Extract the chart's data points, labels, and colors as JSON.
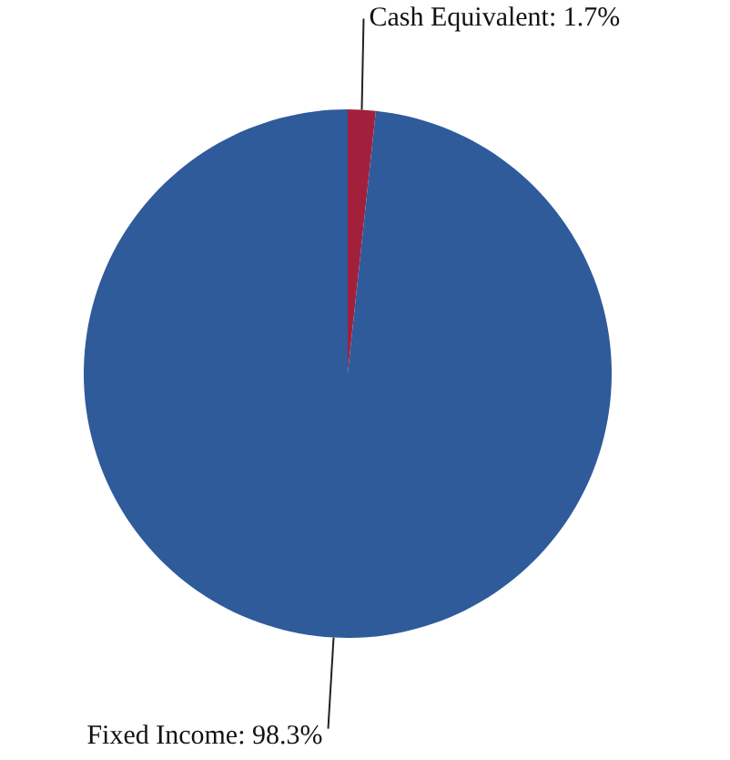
{
  "chart_data": {
    "type": "pie",
    "categories": [
      "Cash Equivalent",
      "Fixed Income"
    ],
    "values": [
      1.7,
      98.3
    ],
    "colors": [
      "#a3203c",
      "#2f5b9b"
    ],
    "value_labels": [
      "1.7%",
      "98.3%"
    ]
  }
}
